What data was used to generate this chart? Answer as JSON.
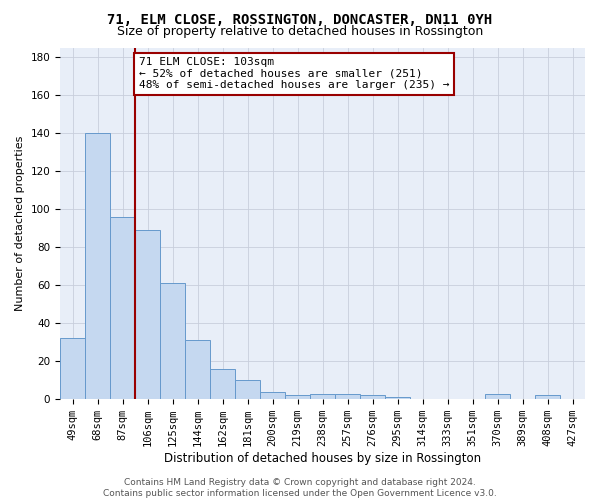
{
  "title": "71, ELM CLOSE, ROSSINGTON, DONCASTER, DN11 0YH",
  "subtitle": "Size of property relative to detached houses in Rossington",
  "xlabel": "Distribution of detached houses by size in Rossington",
  "ylabel": "Number of detached properties",
  "categories": [
    "49sqm",
    "68sqm",
    "87sqm",
    "106sqm",
    "125sqm",
    "144sqm",
    "162sqm",
    "181sqm",
    "200sqm",
    "219sqm",
    "238sqm",
    "257sqm",
    "276sqm",
    "295sqm",
    "314sqm",
    "333sqm",
    "351sqm",
    "370sqm",
    "389sqm",
    "408sqm",
    "427sqm"
  ],
  "values": [
    32,
    140,
    96,
    89,
    61,
    31,
    16,
    10,
    4,
    2,
    3,
    3,
    2,
    1,
    0,
    0,
    0,
    3,
    0,
    2,
    0
  ],
  "bar_color": "#c5d8f0",
  "bar_edge_color": "#6699cc",
  "vline_x": 2.5,
  "vline_color": "#990000",
  "annotation_line1": "71 ELM CLOSE: 103sqm",
  "annotation_line2": "← 52% of detached houses are smaller (251)",
  "annotation_line3": "48% of semi-detached houses are larger (235) →",
  "annotation_box_color": "#ffffff",
  "annotation_box_edge": "#990000",
  "ylim": [
    0,
    185
  ],
  "yticks": [
    0,
    20,
    40,
    60,
    80,
    100,
    120,
    140,
    160,
    180
  ],
  "background_color": "#e8eef8",
  "grid_color": "#c8cedc",
  "footer_text": "Contains HM Land Registry data © Crown copyright and database right 2024.\nContains public sector information licensed under the Open Government Licence v3.0.",
  "title_fontsize": 10,
  "subtitle_fontsize": 9,
  "xlabel_fontsize": 8.5,
  "ylabel_fontsize": 8,
  "tick_fontsize": 7.5,
  "annotation_fontsize": 8,
  "footer_fontsize": 6.5
}
